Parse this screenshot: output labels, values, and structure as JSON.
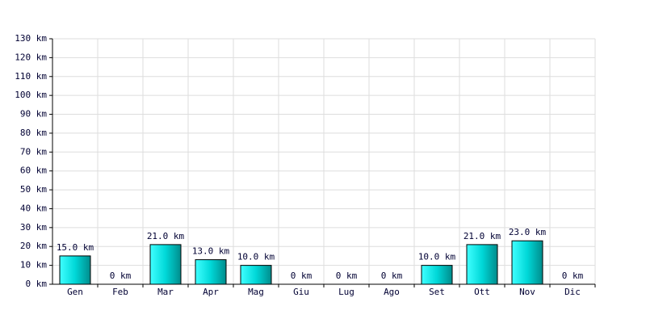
{
  "chart_data": {
    "type": "bar",
    "categories": [
      "Gen",
      "Feb",
      "Mar",
      "Apr",
      "Mag",
      "Giu",
      "Lug",
      "Ago",
      "Set",
      "Ott",
      "Nov",
      "Dic"
    ],
    "values": [
      15,
      0,
      21,
      13,
      10,
      0,
      0,
      0,
      10,
      21,
      23,
      0
    ],
    "value_labels": [
      "15.0 km",
      "0 km",
      "21.0 km",
      "13.0 km",
      "10.0 km",
      "0 km",
      "0 km",
      "0 km",
      "10.0 km",
      "21.0 km",
      "23.0 km",
      "0 km"
    ],
    "color": "#00cccc",
    "ylim": [
      0,
      130
    ],
    "yticks": [
      {
        "value": 0,
        "label": "0 km"
      },
      {
        "value": 10,
        "label": "10 km"
      },
      {
        "value": 20,
        "label": "20 km"
      },
      {
        "value": 30,
        "label": "30 km"
      },
      {
        "value": 40,
        "label": "40 km"
      },
      {
        "value": 50,
        "label": "50 km"
      },
      {
        "value": 60,
        "label": "60 km"
      },
      {
        "value": 70,
        "label": "70 km"
      },
      {
        "value": 80,
        "label": "80 km"
      },
      {
        "value": 90,
        "label": "90 km"
      },
      {
        "value": 100,
        "label": "100 km"
      },
      {
        "value": 110,
        "label": "110 km"
      },
      {
        "value": 120,
        "label": "120 km"
      },
      {
        "value": 130,
        "label": "130 km"
      }
    ],
    "grid": true
  }
}
